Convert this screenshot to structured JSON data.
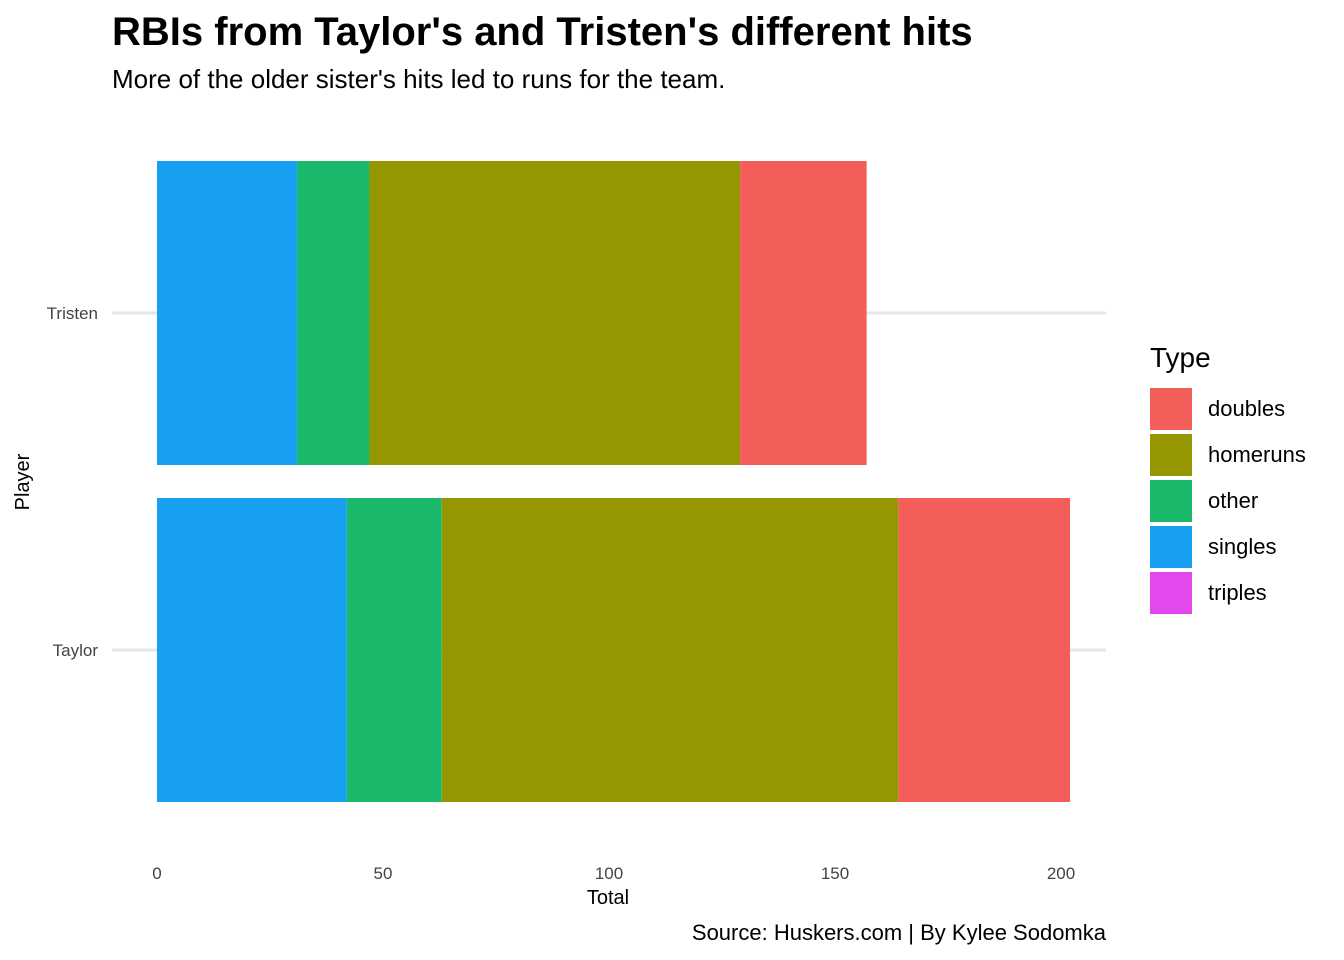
{
  "header": {
    "title": "RBIs from Taylor's and Tristen's different hits",
    "subtitle": "More of the older sister's hits led to runs for the team."
  },
  "footer": {
    "caption": "Source: Huskers.com | By Kylee Sodomka"
  },
  "legend": {
    "title": "Type",
    "items": [
      {
        "label": "doubles",
        "color": "#F35E5A"
      },
      {
        "label": "homeruns",
        "color": "#949700"
      },
      {
        "label": "other",
        "color": "#1AB86B"
      },
      {
        "label": "singles",
        "color": "#17A0F2"
      },
      {
        "label": "triples",
        "color": "#E148EE"
      }
    ]
  },
  "chart_data": {
    "type": "bar",
    "orientation": "horizontal",
    "stacked": true,
    "categories": [
      "Taylor",
      "Tristen"
    ],
    "stack_order": [
      "singles",
      "other",
      "homeruns",
      "doubles",
      "triples"
    ],
    "series": [
      {
        "name": "singles",
        "color": "#17A0F2",
        "values": [
          42,
          31
        ]
      },
      {
        "name": "other",
        "color": "#1AB86B",
        "values": [
          21,
          16
        ]
      },
      {
        "name": "homeruns",
        "color": "#949700",
        "values": [
          101,
          82
        ]
      },
      {
        "name": "doubles",
        "color": "#F35E5A",
        "values": [
          38,
          28
        ]
      },
      {
        "name": "triples",
        "color": "#E148EE",
        "values": [
          0,
          0
        ]
      }
    ],
    "xlabel": "Total",
    "ylabel": "Player",
    "xlim": [
      0,
      212
    ],
    "x_ticks": [
      0,
      50,
      100,
      150,
      200
    ],
    "grid": true,
    "legend_position": "right"
  }
}
